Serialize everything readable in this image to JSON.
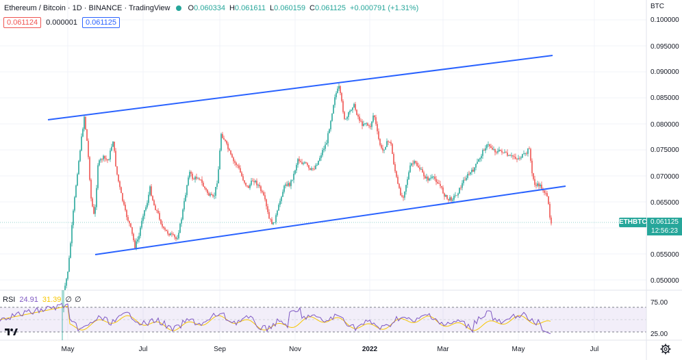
{
  "legend": {
    "title": "Ethereum / Bitcoin · 1D · BINANCE · TradingView",
    "open_label": "O",
    "open": "0.060334",
    "high_label": "H",
    "high": "0.061611",
    "low_label": "L",
    "low": "0.060159",
    "close_label": "C",
    "close": "0.061125",
    "change": "+0.000791 (+1.31%)"
  },
  "value_row": {
    "bid": "0.061124",
    "spread": "0.000001",
    "ask": "0.061125"
  },
  "price_axis": {
    "currency": "BTC",
    "ticks": [
      "0.100000",
      "0.095000",
      "0.090000",
      "0.085000",
      "0.080000",
      "0.075000",
      "0.070000",
      "0.065000",
      "0.055000",
      "0.050000"
    ]
  },
  "time_axis": {
    "labels": [
      "May",
      "Jul",
      "Sep",
      "Nov",
      "2022",
      "Mar",
      "May",
      "Jul"
    ]
  },
  "last_price": {
    "symbol": "ETHBTC",
    "price": "0.061125",
    "countdown": "12:56:23"
  },
  "rsi": {
    "name": "RSI",
    "value": "24.91",
    "ma_value": "31.39",
    "nan1": "∅",
    "nan2": "∅",
    "levels": [
      "75.00",
      "25.00"
    ]
  },
  "colors": {
    "up": "#26a69a",
    "down": "#ef5350",
    "trendline": "#2962ff",
    "rsi": "#7e57c2",
    "rsi_ma": "#f7c600"
  },
  "icons": {
    "logo": "tradingview-logo-icon",
    "settings": "gear-icon"
  }
}
